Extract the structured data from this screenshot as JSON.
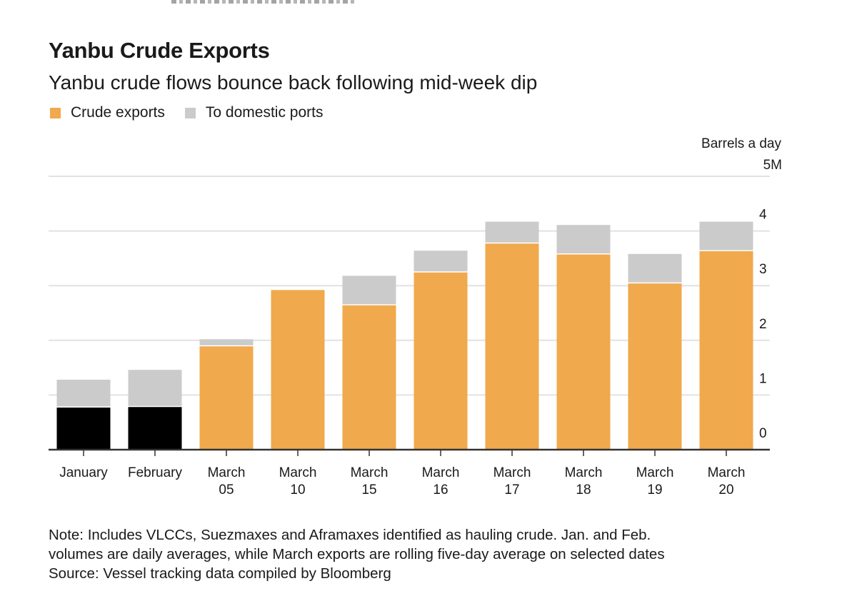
{
  "chart_data": {
    "type": "bar",
    "stacked": true,
    "title": "Yanbu Crude Exports",
    "subtitle": "Yanbu crude flows bounce back following mid-week dip",
    "unit_label": "Barrels a day",
    "ylim": [
      0,
      5
    ],
    "y_ticks": [
      "0",
      "1",
      "2",
      "3",
      "4",
      "5M"
    ],
    "categories": [
      [
        "January"
      ],
      [
        "February"
      ],
      [
        "March",
        "05"
      ],
      [
        "March",
        "10"
      ],
      [
        "March",
        "15"
      ],
      [
        "March",
        "16"
      ],
      [
        "March",
        "17"
      ],
      [
        "March",
        "18"
      ],
      [
        "March",
        "19"
      ],
      [
        "March",
        "20"
      ]
    ],
    "series": [
      {
        "name": "Crude exports",
        "color": "#f0a94c",
        "values": [
          0.78,
          0.79,
          1.9,
          2.92,
          2.65,
          3.25,
          3.78,
          3.58,
          3.05,
          3.64
        ]
      },
      {
        "name": "To domestic ports",
        "color": "#cbcbcb",
        "values": [
          0.5,
          0.67,
          0.12,
          0.0,
          0.53,
          0.39,
          0.39,
          0.53,
          0.53,
          0.53
        ]
      }
    ],
    "average_bar_color": "#000000",
    "legend": [
      {
        "label": "Crude exports",
        "color": "#f0a94c"
      },
      {
        "label": "To domestic ports",
        "color": "#cbcbcb"
      }
    ],
    "legend_position": "top-left",
    "grid": true,
    "note_lines": [
      "Note: Includes VLCCs, Suezmaxes and Aframaxes identified as hauling crude. Jan. and Feb.",
      "volumes are daily averages, while March exports are rolling five-day average on selected dates"
    ],
    "source": "Source: Vessel tracking data compiled by Bloomberg"
  }
}
